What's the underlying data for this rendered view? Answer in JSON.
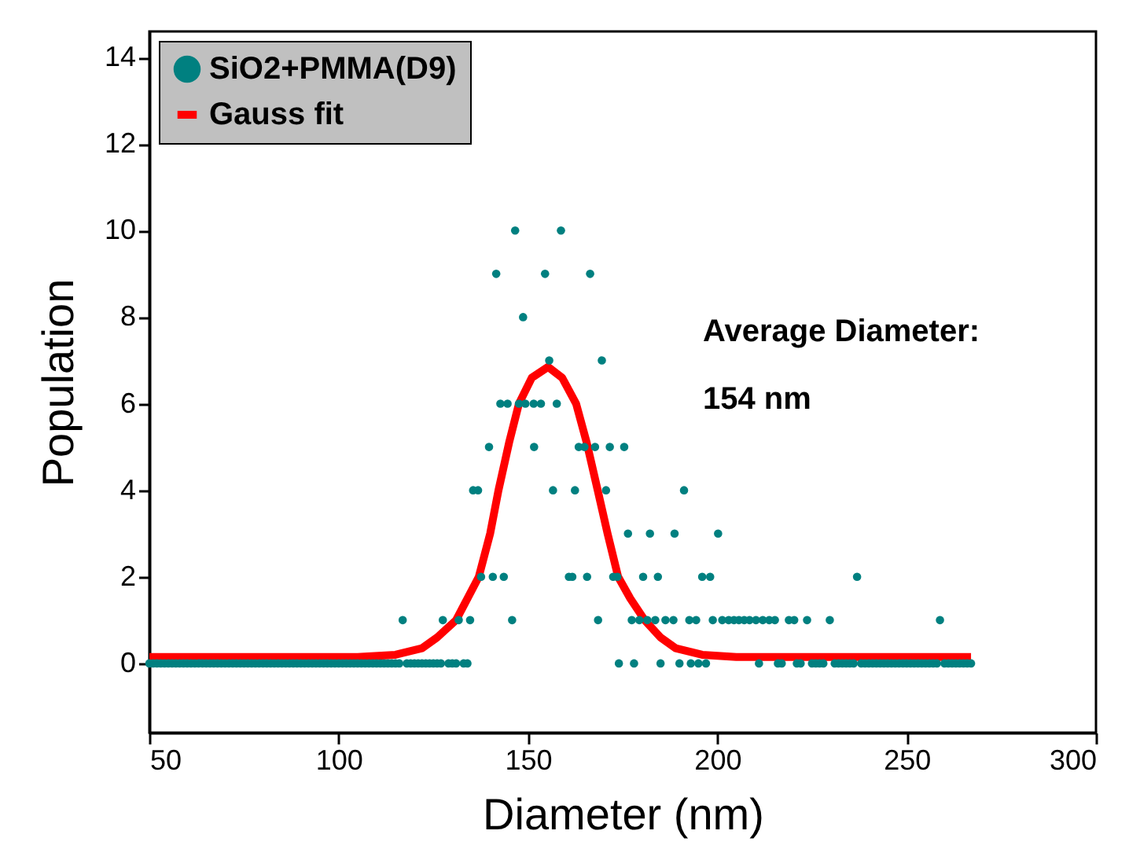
{
  "chart_data": {
    "type": "scatter",
    "xlabel": "Diameter (nm)",
    "ylabel": "Population",
    "xlim": [
      50,
      300
    ],
    "xticks": [
      50,
      100,
      150,
      200,
      250,
      300
    ],
    "ylim": [
      -1.6,
      14.6
    ],
    "yticks": [
      0,
      2,
      4,
      6,
      8,
      10,
      12,
      14
    ],
    "grid": false,
    "legend": "top left",
    "annotations": [
      "Average Diameter:\n154 nm"
    ],
    "series": [
      {
        "name": "SiO2+PMMA(D9)",
        "color": "#008080",
        "marker": "circle",
        "x": [
          50,
          51,
          52,
          53,
          54,
          55,
          56,
          57,
          58,
          59,
          60,
          61,
          62,
          63,
          64,
          65,
          66,
          67,
          68,
          69,
          70,
          71,
          72,
          73,
          74,
          75,
          76,
          77,
          78,
          79,
          80,
          81,
          82,
          83,
          84,
          85,
          86,
          87,
          88,
          89,
          90,
          91,
          92,
          93,
          94,
          95,
          96,
          97,
          98,
          99,
          100,
          101,
          102,
          103,
          104,
          105,
          106,
          107,
          108,
          109,
          110,
          111,
          112,
          113,
          114,
          115,
          116,
          116.9,
          118,
          119,
          120,
          121,
          122,
          123,
          124,
          125,
          126,
          127,
          127.5,
          129,
          130,
          131,
          131.7,
          133,
          134,
          134.7,
          135.5,
          136.8,
          137.6,
          139.7,
          140.7,
          141.6,
          142.7,
          143.6,
          144.6,
          145.8,
          146.6,
          147.6,
          148.7,
          149.3,
          151.5,
          151.6,
          153.4,
          154.5,
          155.6,
          156.6,
          157.6,
          158.7,
          160.8,
          161.7,
          162.4,
          163.4,
          164.9,
          165.6,
          166.4,
          167.7,
          168.5,
          169.5,
          170.6,
          171.6,
          172.5,
          173.6,
          174,
          175.4,
          176.4,
          177.4,
          178,
          179.4,
          180.4,
          181.5,
          182.2,
          183.6,
          184.3,
          185,
          186.3,
          188.4,
          188.7,
          190,
          191.2,
          192.6,
          193,
          194.4,
          195,
          196.0,
          197,
          198.1,
          198.8,
          200.2,
          201.3,
          203.0,
          204.4,
          205.7,
          207.1,
          208.5,
          210.2,
          211,
          212.0,
          213.7,
          215.2,
          216,
          217,
          218.9,
          220.3,
          221,
          222,
          223.7,
          225,
          226,
          227,
          228,
          229.7,
          231,
          232,
          233,
          234,
          235,
          236,
          236.9,
          238,
          239,
          240,
          241,
          242,
          243,
          244,
          245,
          246,
          247,
          248,
          249,
          250,
          251,
          252,
          253,
          254,
          255,
          256,
          257,
          258,
          258.8,
          260,
          261,
          262,
          263,
          264,
          265,
          266,
          267
        ],
        "values": [
          0,
          0,
          0,
          0,
          0,
          0,
          0,
          0,
          0,
          0,
          0,
          0,
          0,
          0,
          0,
          0,
          0,
          0,
          0,
          0,
          0,
          0,
          0,
          0,
          0,
          0,
          0,
          0,
          0,
          0,
          0,
          0,
          0,
          0,
          0,
          0,
          0,
          0,
          0,
          0,
          0,
          0,
          0,
          0,
          0,
          0,
          0,
          0,
          0,
          0,
          0,
          0,
          0,
          0,
          0,
          0,
          0,
          0,
          0,
          0,
          0,
          0,
          0,
          0,
          0,
          0,
          0,
          1,
          0,
          0,
          0,
          0,
          0,
          0,
          0,
          0,
          0,
          0,
          1,
          0,
          0,
          0,
          1,
          0,
          0,
          1,
          4,
          4,
          2,
          5,
          2,
          9,
          6,
          2,
          6,
          1,
          10,
          6,
          8,
          6,
          6,
          5,
          6,
          9,
          7,
          4,
          6,
          10,
          2,
          2,
          4,
          5,
          5,
          2,
          9,
          5,
          1,
          7,
          4,
          5,
          2,
          2,
          0,
          5,
          3,
          1,
          0,
          1,
          2,
          1,
          3,
          1,
          2,
          0,
          1,
          1,
          3,
          0,
          4,
          1,
          0,
          1,
          0,
          2,
          0,
          2,
          1,
          3,
          1,
          1,
          1,
          1,
          1,
          1,
          1,
          0,
          1,
          1,
          1,
          0,
          0,
          1,
          1,
          0,
          0,
          1,
          0,
          0,
          0,
          0,
          1,
          0,
          0,
          0,
          0,
          0,
          0,
          2,
          0,
          0,
          0,
          0,
          0,
          0,
          0,
          0,
          0,
          0,
          0,
          0,
          0,
          0,
          0,
          0,
          0,
          0,
          0,
          0,
          0,
          1,
          0,
          0,
          0,
          0,
          0,
          0,
          0,
          0
        ]
      },
      {
        "name": "Gauss fit",
        "color": "#ff0000",
        "type": "line",
        "marker": "none",
        "line_style": "solid",
        "x": [
          50,
          105,
          115,
          122,
          126,
          131,
          134,
          137,
          140,
          142.2,
          145,
          147.6,
          151,
          155.3,
          159,
          162.7,
          165.5,
          168.4,
          171,
          173.8,
          177,
          180.8,
          185,
          189,
          196,
          205,
          267
        ],
        "values": [
          0.15,
          0.15,
          0.2,
          0.35,
          0.6,
          1,
          1.5,
          2,
          3,
          4,
          5.1,
          6,
          6.6,
          6.85,
          6.6,
          6,
          5.1,
          4,
          3,
          2,
          1.5,
          1,
          0.6,
          0.35,
          0.2,
          0.15,
          0.15
        ]
      }
    ]
  }
}
